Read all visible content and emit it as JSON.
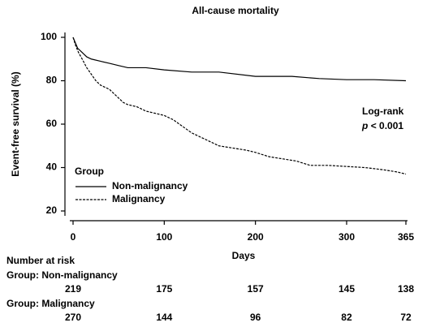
{
  "chart_data": {
    "type": "line",
    "step_style": "survival",
    "title": "All-cause mortality",
    "x_label": "Days",
    "y_label": "Event-free survival (%)",
    "xlim": [
      0,
      365
    ],
    "xticks": [
      0,
      100,
      200,
      300,
      365
    ],
    "ylim": [
      20,
      100
    ],
    "yticks": [
      20,
      40,
      60,
      80,
      100
    ],
    "legend_title": "Group",
    "legend_position": "lower left",
    "annotation": {
      "test": "Log-rank",
      "p_symbol": "p",
      "p_text": "< 0.001"
    },
    "series": [
      {
        "name": "Non-malignancy",
        "color": "#000000",
        "dash": "solid",
        "x": [
          0,
          2,
          5,
          10,
          15,
          20,
          30,
          40,
          50,
          60,
          80,
          100,
          130,
          160,
          200,
          240,
          270,
          300,
          330,
          365
        ],
        "values": [
          100,
          98,
          95,
          93,
          91,
          90,
          89,
          88,
          87,
          86,
          86,
          85,
          84,
          84,
          82,
          82,
          81,
          80.5,
          80.5,
          80
        ]
      },
      {
        "name": "Malignancy",
        "color": "#000000",
        "dash": "dashed",
        "x": [
          0,
          3,
          6,
          10,
          15,
          20,
          25,
          30,
          35,
          40,
          45,
          50,
          55,
          60,
          70,
          80,
          90,
          100,
          110,
          120,
          130,
          140,
          150,
          160,
          175,
          190,
          200,
          215,
          230,
          245,
          260,
          280,
          300,
          320,
          340,
          355,
          365
        ],
        "values": [
          100,
          96,
          93,
          90,
          86,
          83,
          80,
          78,
          77,
          76,
          74,
          72,
          70,
          69,
          68,
          66,
          65,
          64,
          62,
          59,
          56,
          54,
          52,
          50,
          49,
          48,
          47,
          45,
          44,
          43,
          41,
          41,
          40.5,
          40,
          39,
          38,
          37
        ]
      }
    ],
    "risk_table": {
      "title": "Number at risk",
      "groups": [
        {
          "label": "Group: Non-malignancy",
          "counts": [
            219,
            175,
            157,
            145,
            138
          ]
        },
        {
          "label": "Group: Malignancy",
          "counts": [
            270,
            144,
            96,
            82,
            72
          ]
        }
      ]
    }
  }
}
